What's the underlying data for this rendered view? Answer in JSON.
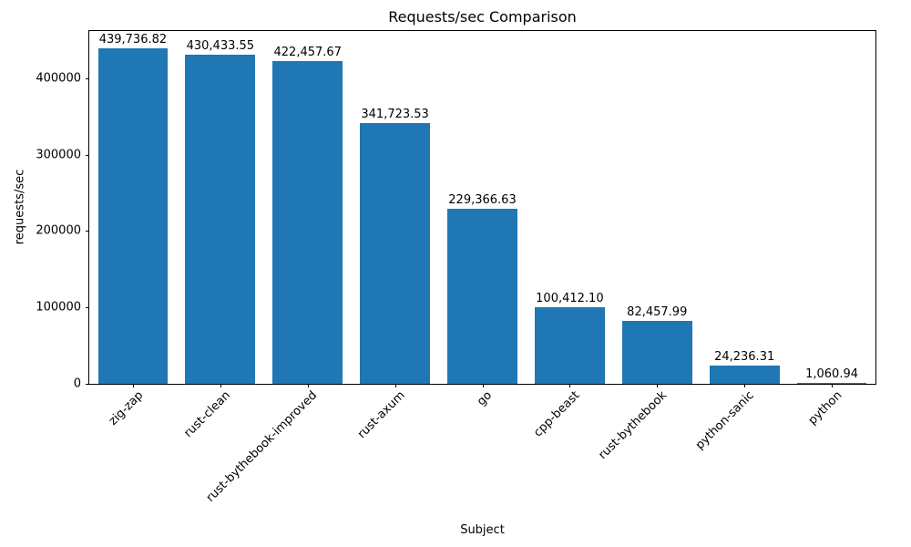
{
  "chart_data": {
    "type": "bar",
    "title": "Requests/sec Comparison",
    "xlabel": "Subject",
    "ylabel": "requests/sec",
    "categories": [
      "zig-zap",
      "rust-clean",
      "rust-bythebook-improved",
      "rust-axum",
      "go",
      "cpp-beast",
      "rust-bythebook",
      "python-sanic",
      "python"
    ],
    "values": [
      439736.82,
      430433.55,
      422457.67,
      341723.53,
      229366.63,
      100412.1,
      82457.99,
      24236.31,
      1060.94
    ],
    "value_labels": [
      "439,736.82",
      "430,433.55",
      "422,457.67",
      "341,723.53",
      "229,366.63",
      "100,412.10",
      "82,457.99",
      "24,236.31",
      "1,060.94"
    ],
    "yticks": [
      0,
      100000,
      200000,
      300000,
      400000
    ],
    "ytick_labels": [
      "0",
      "100000",
      "200000",
      "300000",
      "400000"
    ],
    "ylim": [
      0,
      462000
    ],
    "bar_color": "#1f77b4",
    "bar_width_frac": 0.8,
    "xtick_rotation_deg": 45,
    "grid": false,
    "legend": null
  }
}
